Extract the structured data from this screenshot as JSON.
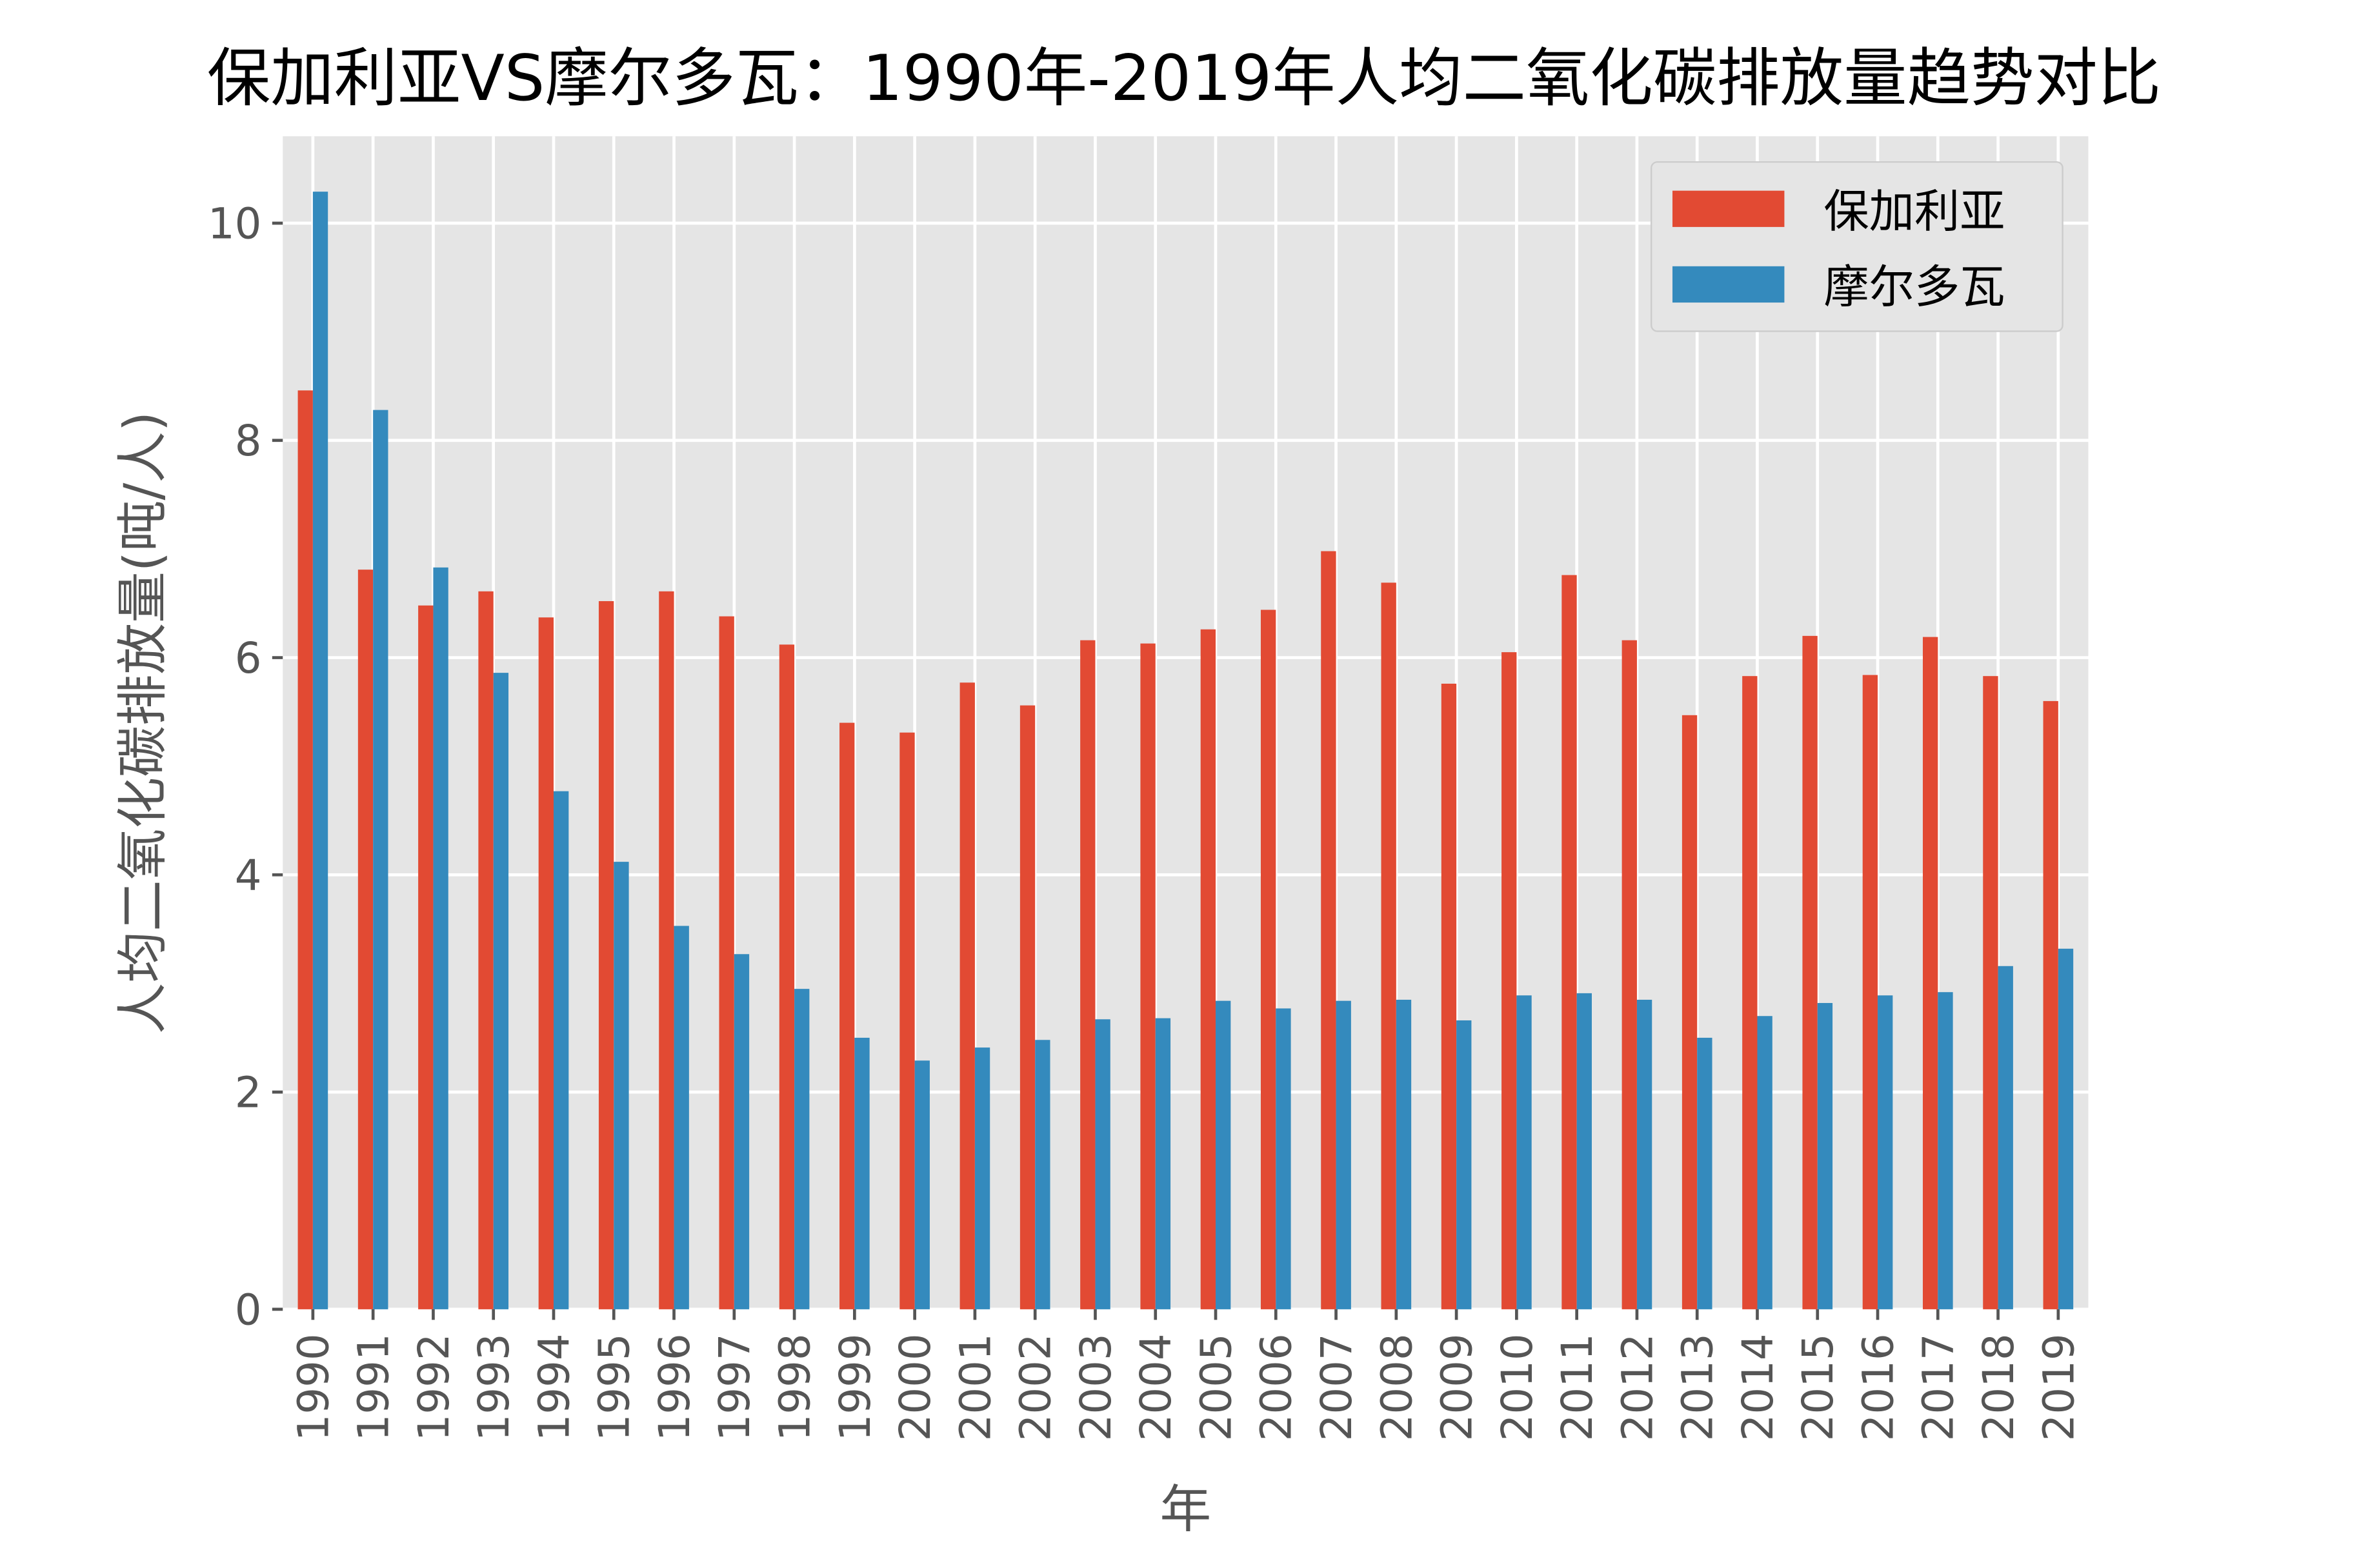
{
  "chart_data": {
    "type": "bar",
    "title": "保加利亚VS摩尔多瓦：1990年-2019年人均二氧化碳排放量趋势对比",
    "xlabel": "年",
    "ylabel": "人均二氧化碳排放量(吨/人)",
    "ylim": [
      0,
      10.8
    ],
    "yticks": [
      0,
      2,
      4,
      6,
      8,
      10
    ],
    "grid": true,
    "legend_position": "top-right",
    "categories": [
      "1990",
      "1991",
      "1992",
      "1993",
      "1994",
      "1995",
      "1996",
      "1997",
      "1998",
      "1999",
      "2000",
      "2001",
      "2002",
      "2003",
      "2004",
      "2005",
      "2006",
      "2007",
      "2008",
      "2009",
      "2010",
      "2011",
      "2012",
      "2013",
      "2014",
      "2015",
      "2016",
      "2017",
      "2018",
      "2019"
    ],
    "series": [
      {
        "name": "保加利亚",
        "color": "#E24A33",
        "values": [
          8.46,
          6.81,
          6.48,
          6.61,
          6.37,
          6.52,
          6.61,
          6.38,
          6.12,
          5.4,
          5.31,
          5.77,
          5.56,
          6.16,
          6.13,
          6.26,
          6.44,
          6.98,
          6.69,
          5.76,
          6.05,
          6.76,
          6.16,
          5.47,
          5.83,
          6.2,
          5.84,
          6.19,
          5.83,
          5.6
        ]
      },
      {
        "name": "摩尔多瓦",
        "color": "#348ABD",
        "values": [
          10.29,
          8.28,
          6.83,
          5.86,
          4.77,
          4.12,
          3.53,
          3.27,
          2.95,
          2.5,
          2.29,
          2.41,
          2.48,
          2.67,
          2.68,
          2.84,
          2.77,
          2.84,
          2.85,
          2.66,
          2.89,
          2.91,
          2.85,
          2.5,
          2.7,
          2.82,
          2.89,
          2.92,
          3.16,
          3.32
        ]
      }
    ]
  }
}
